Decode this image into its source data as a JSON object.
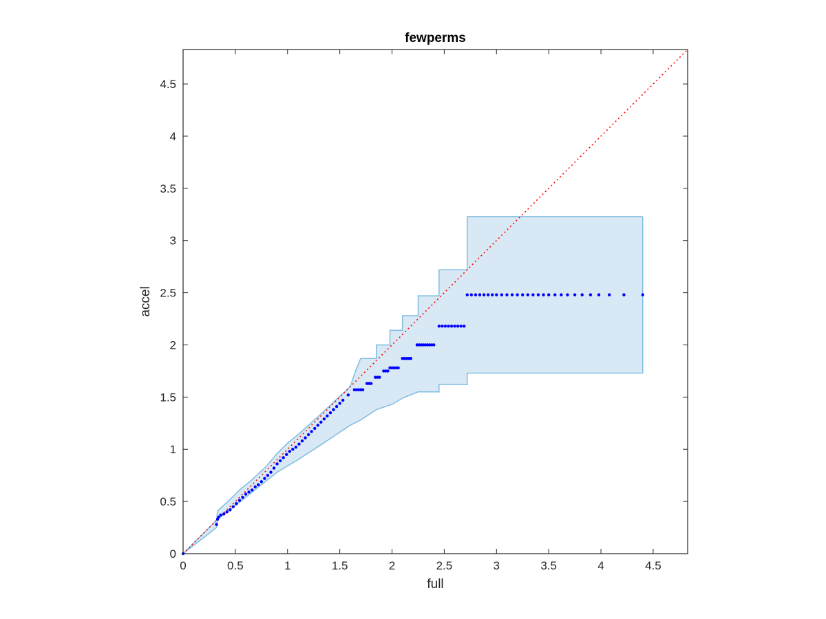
{
  "chart_data": {
    "type": "scatter",
    "title": "fewperms",
    "xlabel": "full",
    "ylabel": "accel",
    "xlim": [
      0,
      4.83
    ],
    "ylim": [
      0,
      4.83
    ],
    "xticks": [
      "0",
      "0.5",
      "1",
      "1.5",
      "2",
      "2.5",
      "3",
      "3.5",
      "4",
      "4.5"
    ],
    "yticks": [
      "0",
      "0.5",
      "1",
      "1.5",
      "2",
      "2.5",
      "3",
      "3.5",
      "4",
      "4.5"
    ],
    "grid": false,
    "legend": "none",
    "reference_line": {
      "style": "dotted",
      "color": "#ff0000",
      "from": [
        0,
        0
      ],
      "to": [
        4.83,
        4.83
      ]
    },
    "band": {
      "color": "#d8e8f4",
      "edge_color": "#80bde0",
      "upper": [
        [
          0,
          0
        ],
        [
          0.32,
          0.32
        ],
        [
          0.33,
          0.41
        ],
        [
          0.45,
          0.52
        ],
        [
          0.55,
          0.62
        ],
        [
          0.65,
          0.7
        ],
        [
          0.8,
          0.84
        ],
        [
          0.9,
          0.96
        ],
        [
          1.0,
          1.06
        ],
        [
          1.1,
          1.14
        ],
        [
          1.3,
          1.32
        ],
        [
          1.45,
          1.46
        ],
        [
          1.6,
          1.6
        ],
        [
          1.65,
          1.75
        ],
        [
          1.7,
          1.87
        ],
        [
          1.85,
          1.87
        ],
        [
          1.85,
          2.0
        ],
        [
          1.98,
          2.0
        ],
        [
          1.98,
          2.14
        ],
        [
          2.1,
          2.14
        ],
        [
          2.1,
          2.28
        ],
        [
          2.25,
          2.28
        ],
        [
          2.25,
          2.47
        ],
        [
          2.45,
          2.47
        ],
        [
          2.45,
          2.72
        ],
        [
          2.72,
          2.72
        ],
        [
          2.72,
          3.23
        ],
        [
          4.4,
          3.23
        ]
      ],
      "lower": [
        [
          0,
          0
        ],
        [
          0.32,
          0.25
        ],
        [
          0.33,
          0.33
        ],
        [
          0.45,
          0.42
        ],
        [
          0.55,
          0.5
        ],
        [
          0.65,
          0.58
        ],
        [
          0.8,
          0.7
        ],
        [
          0.9,
          0.78
        ],
        [
          1.0,
          0.84
        ],
        [
          1.1,
          0.9
        ],
        [
          1.3,
          1.03
        ],
        [
          1.45,
          1.13
        ],
        [
          1.6,
          1.23
        ],
        [
          1.7,
          1.28
        ],
        [
          1.85,
          1.38
        ],
        [
          2.0,
          1.43
        ],
        [
          2.1,
          1.49
        ],
        [
          2.25,
          1.55
        ],
        [
          2.45,
          1.55
        ],
        [
          2.45,
          1.62
        ],
        [
          2.72,
          1.62
        ],
        [
          2.72,
          1.73
        ],
        [
          4.4,
          1.73
        ]
      ]
    },
    "series": [
      {
        "color": "#0000ff",
        "points": [
          [
            0,
            0
          ],
          [
            0.32,
            0.28
          ],
          [
            0.33,
            0.33
          ],
          [
            0.34,
            0.35
          ],
          [
            0.36,
            0.37
          ],
          [
            0.39,
            0.38
          ],
          [
            0.42,
            0.4
          ],
          [
            0.45,
            0.42
          ],
          [
            0.48,
            0.45
          ],
          [
            0.51,
            0.48
          ],
          [
            0.54,
            0.51
          ],
          [
            0.57,
            0.54
          ],
          [
            0.6,
            0.57
          ],
          [
            0.63,
            0.59
          ],
          [
            0.66,
            0.61
          ],
          [
            0.69,
            0.64
          ],
          [
            0.72,
            0.66
          ],
          [
            0.75,
            0.69
          ],
          [
            0.78,
            0.72
          ],
          [
            0.81,
            0.75
          ],
          [
            0.84,
            0.78
          ],
          [
            0.87,
            0.82
          ],
          [
            0.9,
            0.86
          ],
          [
            0.93,
            0.89
          ],
          [
            0.96,
            0.92
          ],
          [
            0.99,
            0.95
          ],
          [
            1.02,
            0.98
          ],
          [
            1.05,
            1.0
          ],
          [
            1.08,
            1.02
          ],
          [
            1.11,
            1.05
          ],
          [
            1.14,
            1.08
          ],
          [
            1.17,
            1.11
          ],
          [
            1.2,
            1.14
          ],
          [
            1.23,
            1.17
          ],
          [
            1.26,
            1.2
          ],
          [
            1.29,
            1.23
          ],
          [
            1.32,
            1.26
          ],
          [
            1.35,
            1.29
          ],
          [
            1.38,
            1.32
          ],
          [
            1.41,
            1.35
          ],
          [
            1.44,
            1.38
          ],
          [
            1.47,
            1.41
          ],
          [
            1.5,
            1.44
          ],
          [
            1.53,
            1.47
          ],
          [
            1.58,
            1.52
          ],
          [
            1.64,
            1.57
          ],
          [
            1.66,
            1.57
          ],
          [
            1.68,
            1.57
          ],
          [
            1.7,
            1.57
          ],
          [
            1.72,
            1.57
          ],
          [
            1.76,
            1.63
          ],
          [
            1.78,
            1.63
          ],
          [
            1.8,
            1.63
          ],
          [
            1.84,
            1.69
          ],
          [
            1.86,
            1.69
          ],
          [
            1.88,
            1.69
          ],
          [
            1.92,
            1.75
          ],
          [
            1.94,
            1.75
          ],
          [
            1.96,
            1.75
          ],
          [
            1.98,
            1.78
          ],
          [
            2.0,
            1.78
          ],
          [
            2.02,
            1.78
          ],
          [
            2.04,
            1.78
          ],
          [
            2.06,
            1.78
          ],
          [
            2.1,
            1.87
          ],
          [
            2.12,
            1.87
          ],
          [
            2.14,
            1.87
          ],
          [
            2.16,
            1.87
          ],
          [
            2.18,
            1.87
          ],
          [
            2.24,
            2.0
          ],
          [
            2.26,
            2.0
          ],
          [
            2.28,
            2.0
          ],
          [
            2.3,
            2.0
          ],
          [
            2.32,
            2.0
          ],
          [
            2.34,
            2.0
          ],
          [
            2.36,
            2.0
          ],
          [
            2.38,
            2.0
          ],
          [
            2.4,
            2.0
          ],
          [
            2.45,
            2.18
          ],
          [
            2.48,
            2.18
          ],
          [
            2.51,
            2.18
          ],
          [
            2.54,
            2.18
          ],
          [
            2.57,
            2.18
          ],
          [
            2.6,
            2.18
          ],
          [
            2.63,
            2.18
          ],
          [
            2.66,
            2.18
          ],
          [
            2.69,
            2.18
          ],
          [
            2.72,
            2.48
          ],
          [
            2.76,
            2.48
          ],
          [
            2.8,
            2.48
          ],
          [
            2.84,
            2.48
          ],
          [
            2.88,
            2.48
          ],
          [
            2.92,
            2.48
          ],
          [
            2.96,
            2.48
          ],
          [
            3.0,
            2.48
          ],
          [
            3.05,
            2.48
          ],
          [
            3.1,
            2.48
          ],
          [
            3.15,
            2.48
          ],
          [
            3.2,
            2.48
          ],
          [
            3.25,
            2.48
          ],
          [
            3.3,
            2.48
          ],
          [
            3.35,
            2.48
          ],
          [
            3.4,
            2.48
          ],
          [
            3.45,
            2.48
          ],
          [
            3.5,
            2.48
          ],
          [
            3.56,
            2.48
          ],
          [
            3.62,
            2.48
          ],
          [
            3.68,
            2.48
          ],
          [
            3.75,
            2.48
          ],
          [
            3.82,
            2.48
          ],
          [
            3.9,
            2.48
          ],
          [
            3.98,
            2.48
          ],
          [
            4.08,
            2.48
          ],
          [
            4.22,
            2.48
          ],
          [
            4.4,
            2.48
          ]
        ]
      }
    ]
  }
}
